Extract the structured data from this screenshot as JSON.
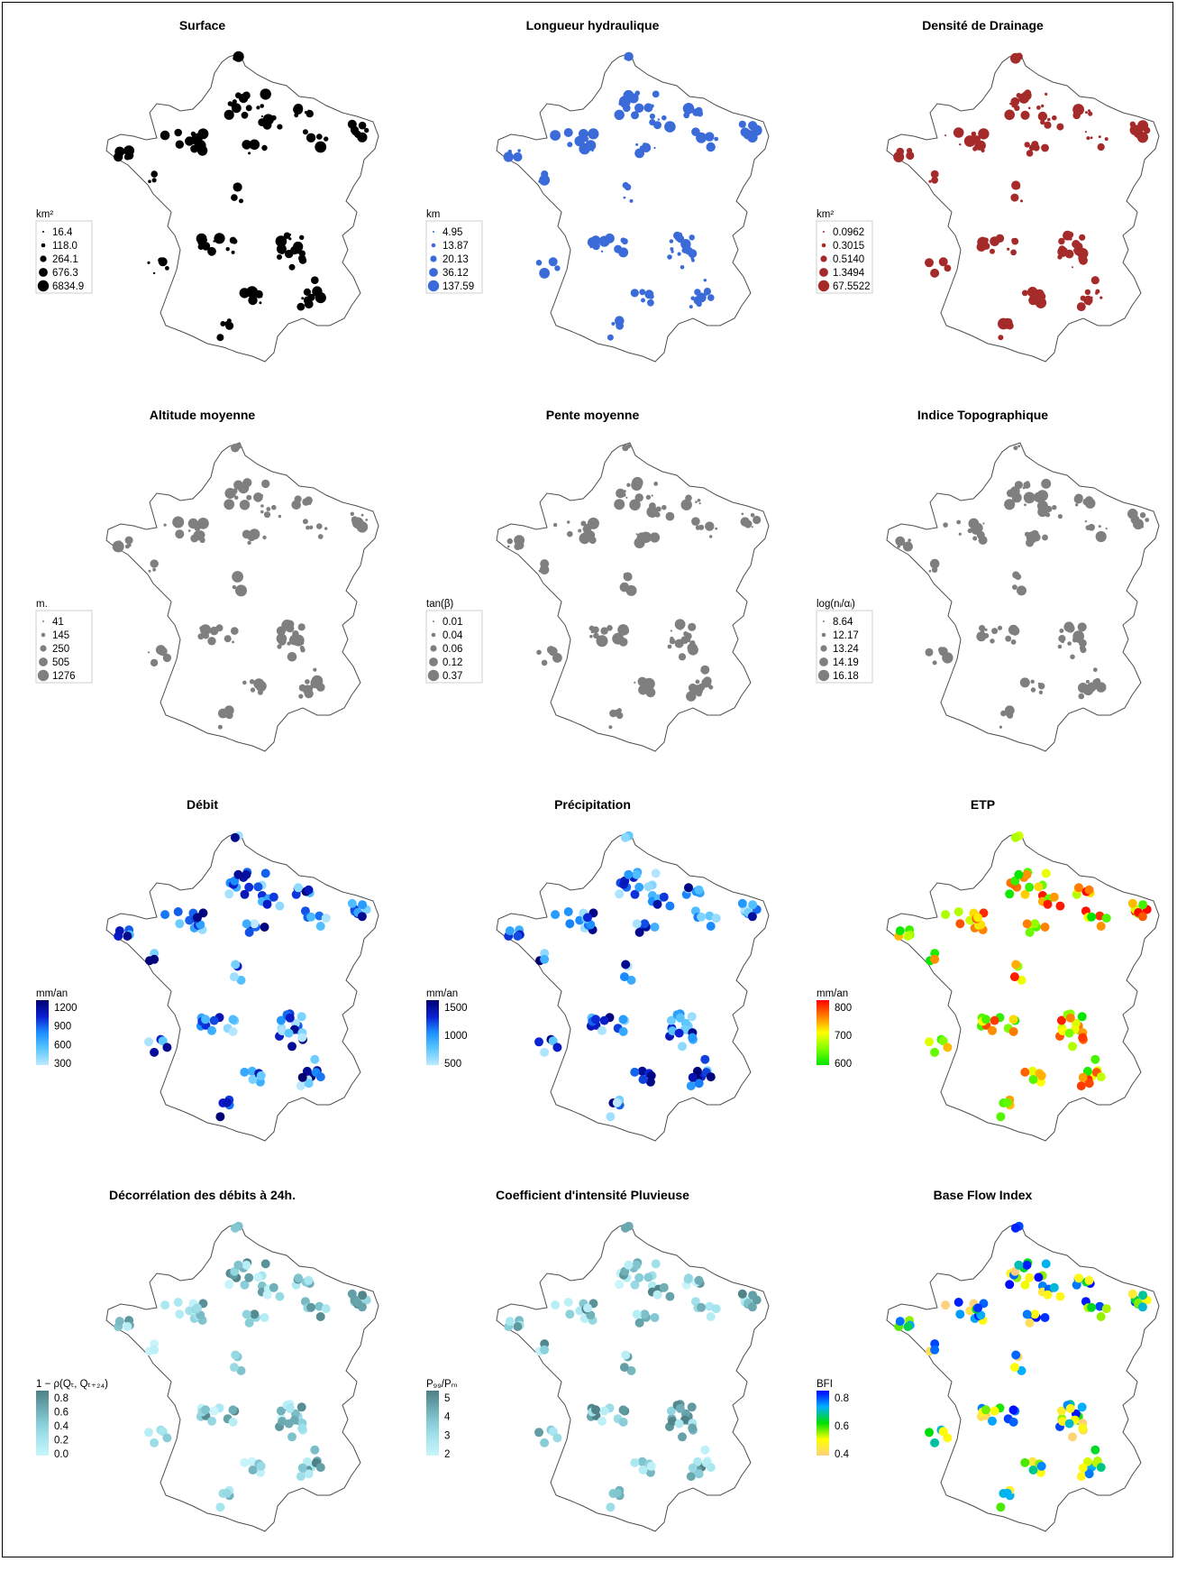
{
  "colors": {
    "surface": "#000000",
    "longueur": "#3b6bd8",
    "densite": "#a52a2a",
    "grey": "#7f7f7f",
    "map_outline": "#4d4d4d"
  },
  "panels": [
    {
      "title": "Surface",
      "type": "size",
      "color": "#000000",
      "legend": {
        "unit": "km²",
        "labels": [
          "16.4",
          "118.0",
          "264.1",
          "676.3",
          "6834.9"
        ]
      },
      "pattern": 0
    },
    {
      "title": "Longueur hydraulique",
      "type": "size",
      "color": "#3b6bd8",
      "legend": {
        "unit": "km",
        "labels": [
          "4.95",
          "13.87",
          "20.13",
          "36.12",
          "137.59"
        ]
      },
      "pattern": 1
    },
    {
      "title": "Densité de Drainage",
      "type": "size",
      "color": "#a52a2a",
      "legend": {
        "unit": "km²",
        "labels": [
          "0.0962",
          "0.3015",
          "0.5140",
          "1.3494",
          "67.5522"
        ]
      },
      "pattern": 2
    },
    {
      "title": "Altitude moyenne",
      "type": "size",
      "color": "#7f7f7f",
      "legend": {
        "unit": "m.",
        "labels": [
          "41",
          "145",
          "250",
          "505",
          "1276"
        ]
      },
      "pattern": 3
    },
    {
      "title": "Pente moyenne",
      "type": "size",
      "color": "#7f7f7f",
      "legend": {
        "unit": "tan(β)",
        "labels": [
          "0.01",
          "0.04",
          "0.06",
          "0.12",
          "0.37"
        ]
      },
      "pattern": 4
    },
    {
      "title": "Indice Topographique",
      "type": "size",
      "color": "#7f7f7f",
      "legend": {
        "unit": "log(nᵢ/αᵢ)",
        "labels": [
          "8.64",
          "12.17",
          "13.24",
          "14.19",
          "16.18"
        ]
      },
      "pattern": 5
    },
    {
      "title": "Débit",
      "type": "color",
      "legend": {
        "unit": "mm/an",
        "labels": [
          "1200",
          "900",
          "600",
          "300"
        ],
        "gradient": [
          "#00006e",
          "#0b1fd1",
          "#1a8fff",
          "#5cc8ff",
          "#bfe9ff"
        ]
      },
      "pattern": 6
    },
    {
      "title": "Précipitation",
      "type": "color",
      "legend": {
        "unit": "mm/an",
        "labels": [
          "1500",
          "1000",
          "500"
        ],
        "gradient": [
          "#00006e",
          "#0b1fd1",
          "#1a8fff",
          "#5cc8ff",
          "#bfe9ff"
        ]
      },
      "pattern": 7
    },
    {
      "title": "ETP",
      "type": "color",
      "legend": {
        "unit": "mm/an",
        "labels": [
          "800",
          "700",
          "600"
        ],
        "gradient": [
          "#ff0000",
          "#ff8000",
          "#ffff00",
          "#80ff00",
          "#00e600"
        ]
      },
      "pattern": 8
    },
    {
      "title": "Décorrélation des débits à 24h.",
      "type": "color",
      "legend": {
        "unit": "1 − ρ(Qₜ, Qₜ₊₂₄)",
        "labels": [
          "0.8",
          "0.6",
          "0.4",
          "0.2",
          "0.0"
        ],
        "gradient": [
          "#4d8085",
          "#6aa8b0",
          "#88cdd8",
          "#a8e6ef",
          "#c9f5fb"
        ]
      },
      "pattern": 9
    },
    {
      "title": "Coefficient d'intensité Pluvieuse",
      "type": "color",
      "legend": {
        "unit": "P₉₉/Pₘ",
        "labels": [
          "5",
          "4",
          "3",
          "2"
        ],
        "gradient": [
          "#4d8085",
          "#6aa8b0",
          "#88cdd8",
          "#a8e6ef",
          "#c9f5fb"
        ]
      },
      "pattern": 10
    },
    {
      "title": "Base Flow Index",
      "type": "color",
      "legend": {
        "unit": "BFI",
        "labels": [
          "0.8",
          "0.6",
          "0.4"
        ],
        "gradient": [
          "#0000ff",
          "#00b0ff",
          "#00e000",
          "#ffff00",
          "#ffd080"
        ]
      },
      "pattern": 11
    }
  ]
}
